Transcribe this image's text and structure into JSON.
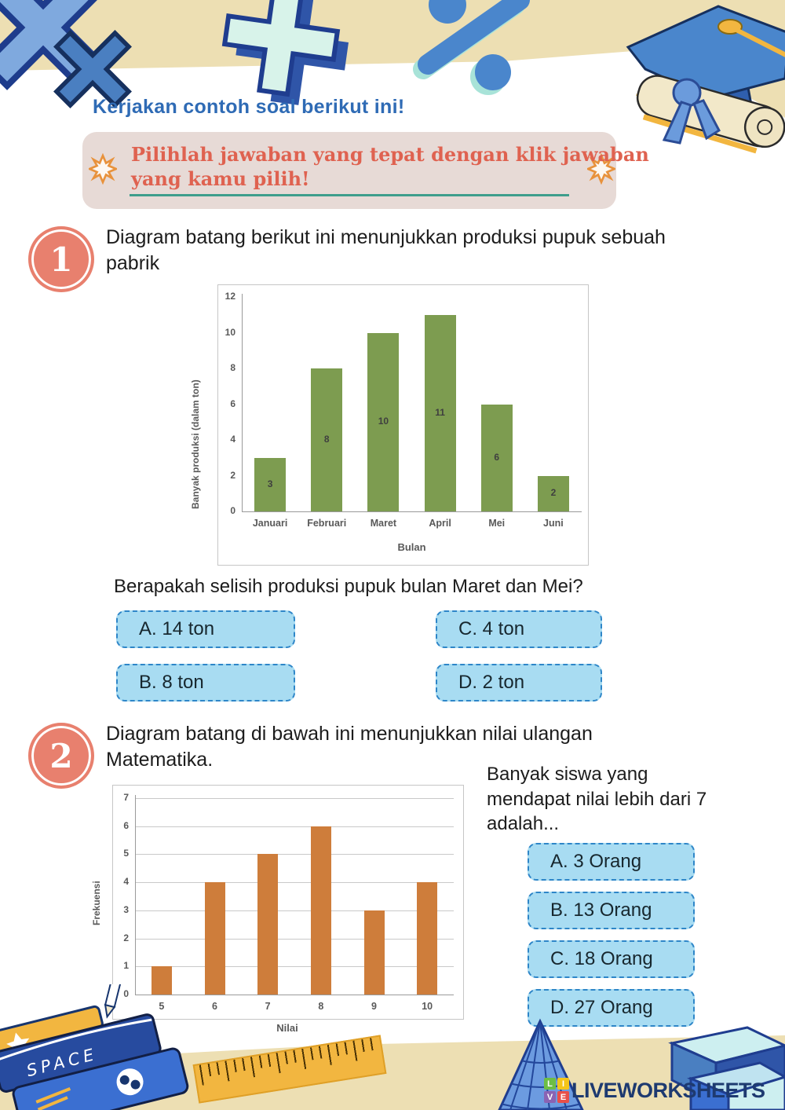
{
  "header": {
    "title": "Kerjakan contoh soal berikut ini!"
  },
  "banner": {
    "text": "Pilihlah jawaban yang tepat dengan klik jawaban\nyang kamu pilih!",
    "bg_color": "#E7DAD6",
    "text_color": "#DF6250",
    "underline_color": "#3E9E8C",
    "star_color": "#E8923C"
  },
  "questions": {
    "q1": {
      "number": "1",
      "prompt": "Diagram batang berikut ini menunjukkan produksi pupuk sebuah\npabrik",
      "question": "Berapakah selisih produksi pupuk bulan Maret dan Mei?",
      "options": [
        {
          "label": "A. 14 ton"
        },
        {
          "label": "B. 8 ton"
        },
        {
          "label": "C. 4 ton"
        },
        {
          "label": "D. 2 ton"
        }
      ]
    },
    "q2": {
      "number": "2",
      "prompt": "Diagram batang di bawah ini menunjukkan nilai ulangan\nMatematika.",
      "question": "Banyak siswa yang\nmendapat nilai lebih dari 7\nadalah...",
      "options": [
        {
          "label": "A. 3 Orang"
        },
        {
          "label": "B. 13 Orang"
        },
        {
          "label": "C. 18 Orang"
        },
        {
          "label": "D. 27 Orang"
        }
      ]
    }
  },
  "chart_data": [
    {
      "type": "bar",
      "categories": [
        "Januari",
        "Februari",
        "Maret",
        "April",
        "Mei",
        "Juni"
      ],
      "values": [
        3,
        8,
        10,
        11,
        6,
        2
      ],
      "title": "",
      "xlabel": "Bulan",
      "ylabel": "Banyak produksi  (dalam ton)",
      "ylim": [
        0,
        12
      ],
      "ytick_step": 2,
      "bar_color": "#7D9C50",
      "grid": false,
      "value_labels": true,
      "legend": false
    },
    {
      "type": "bar",
      "categories": [
        "5",
        "6",
        "7",
        "8",
        "9",
        "10"
      ],
      "values": [
        1,
        4,
        5,
        6,
        3,
        4
      ],
      "title": "",
      "xlabel": "Nilai",
      "ylabel": "Frekuensi",
      "ylim": [
        0,
        7
      ],
      "ytick_step": 1,
      "bar_color": "#CE7D3B",
      "grid": true,
      "value_labels": false,
      "legend": false
    }
  ],
  "colors": {
    "title_blue": "#2F6BB5",
    "badge_salmon": "#E8806E",
    "option_fill": "#A8DCF2",
    "option_border": "#2E86C8",
    "band_cream": "#EDDFB3",
    "logo_navy": "#1E3A70"
  },
  "footer": {
    "logo_text": "LIVEWORKSHEETS",
    "space_label": "SPACE",
    "logo_blocks": [
      {
        "ch": "L",
        "color": "#6DBE45"
      },
      {
        "ch": "I",
        "color": "#F5C518"
      },
      {
        "ch": "V",
        "color": "#8A63B3"
      },
      {
        "ch": "E",
        "color": "#E8504A"
      }
    ]
  }
}
